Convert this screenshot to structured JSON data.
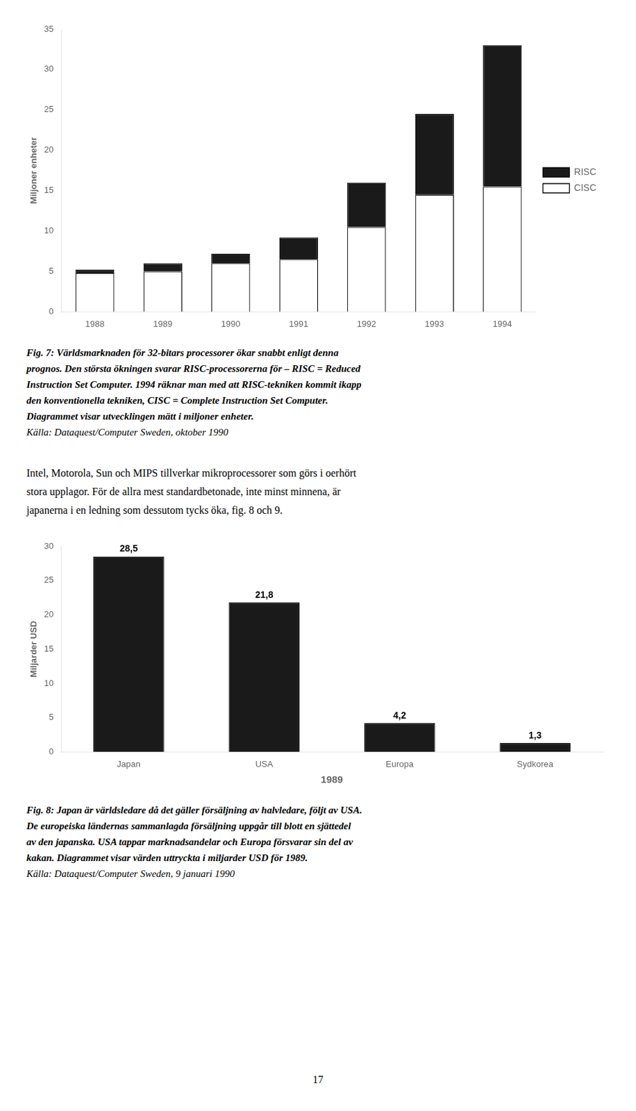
{
  "chart_data": [
    {
      "type": "bar",
      "stacked": true,
      "categories": [
        "1988",
        "1989",
        "1990",
        "1991",
        "1992",
        "1993",
        "1994"
      ],
      "series": [
        {
          "name": "CISC",
          "color": "#ffffff",
          "values": [
            4.8,
            5.0,
            6.0,
            6.5,
            10.5,
            14.5,
            15.5
          ]
        },
        {
          "name": "RISC",
          "color": "#1a1a1a",
          "values": [
            0.4,
            1.0,
            1.2,
            2.7,
            5.5,
            10.0,
            17.5
          ]
        }
      ],
      "y_label": "Miljoner enheter",
      "ylim": [
        0,
        35
      ],
      "yticks": [
        0,
        5,
        10,
        15,
        20,
        25,
        30,
        35
      ],
      "grid": false,
      "legend": "right",
      "annotations": [
        "Fig. 7: Världsmarknaden för 32-bitars processorer ökar snabbt enligt denna",
        "prognos. Den största ökningen svarar RISC-processorerna för – RISC = Reduced",
        "Instruction Set Computer. 1994 räknar man med att RISC-tekniken kommit ikapp",
        "den konventionella tekniken, CISC = Complete Instruction Set Computer.",
        "Diagrammet visar utvecklingen mätt i miljoner enheter.",
        "Källa: Dataquest/Computer Sweden, oktober 1990"
      ]
    },
    {
      "type": "bar",
      "categories": [
        "Japan",
        "USA",
        "Europa",
        "Sydkorea"
      ],
      "values": [
        28.5,
        21.8,
        4.2,
        1.3
      ],
      "value_labels": [
        "28,5",
        "21,8",
        "4,2",
        "1,3"
      ],
      "data_labels": true,
      "color": "#1a1a1a",
      "x_label": "1989",
      "y_label": "Miljarder USD",
      "ylim": [
        0,
        30
      ],
      "yticks": [
        0,
        5,
        10,
        15,
        20,
        25,
        30
      ],
      "grid": false,
      "annotations": [
        "Fig. 8: Japan är världsledare då det gäller försäljning av halvledare, följt av USA.",
        "De europeiska ländernas sammanlagda försäljning uppgår till blott en sjättedel",
        "av den japanska. USA tappar marknadsandelar och Europa försvarar sin del av",
        "kakan. Diagrammet visar värden uttryckta i miljarder USD för 1989.",
        "Källa: Dataquest/Computer Sweden, 9 januari 1990"
      ]
    }
  ],
  "paragraph": [
    "Intel, Motorola, Sun och MIPS tillverkar mikroprocessorer som görs i oerhört",
    "stora upplagor. För de allra mest standardbetonade, inte minst minnena, är",
    "japanerna i en ledning som dessutom tycks öka, fig. 8 och 9."
  ],
  "page_number": "17"
}
